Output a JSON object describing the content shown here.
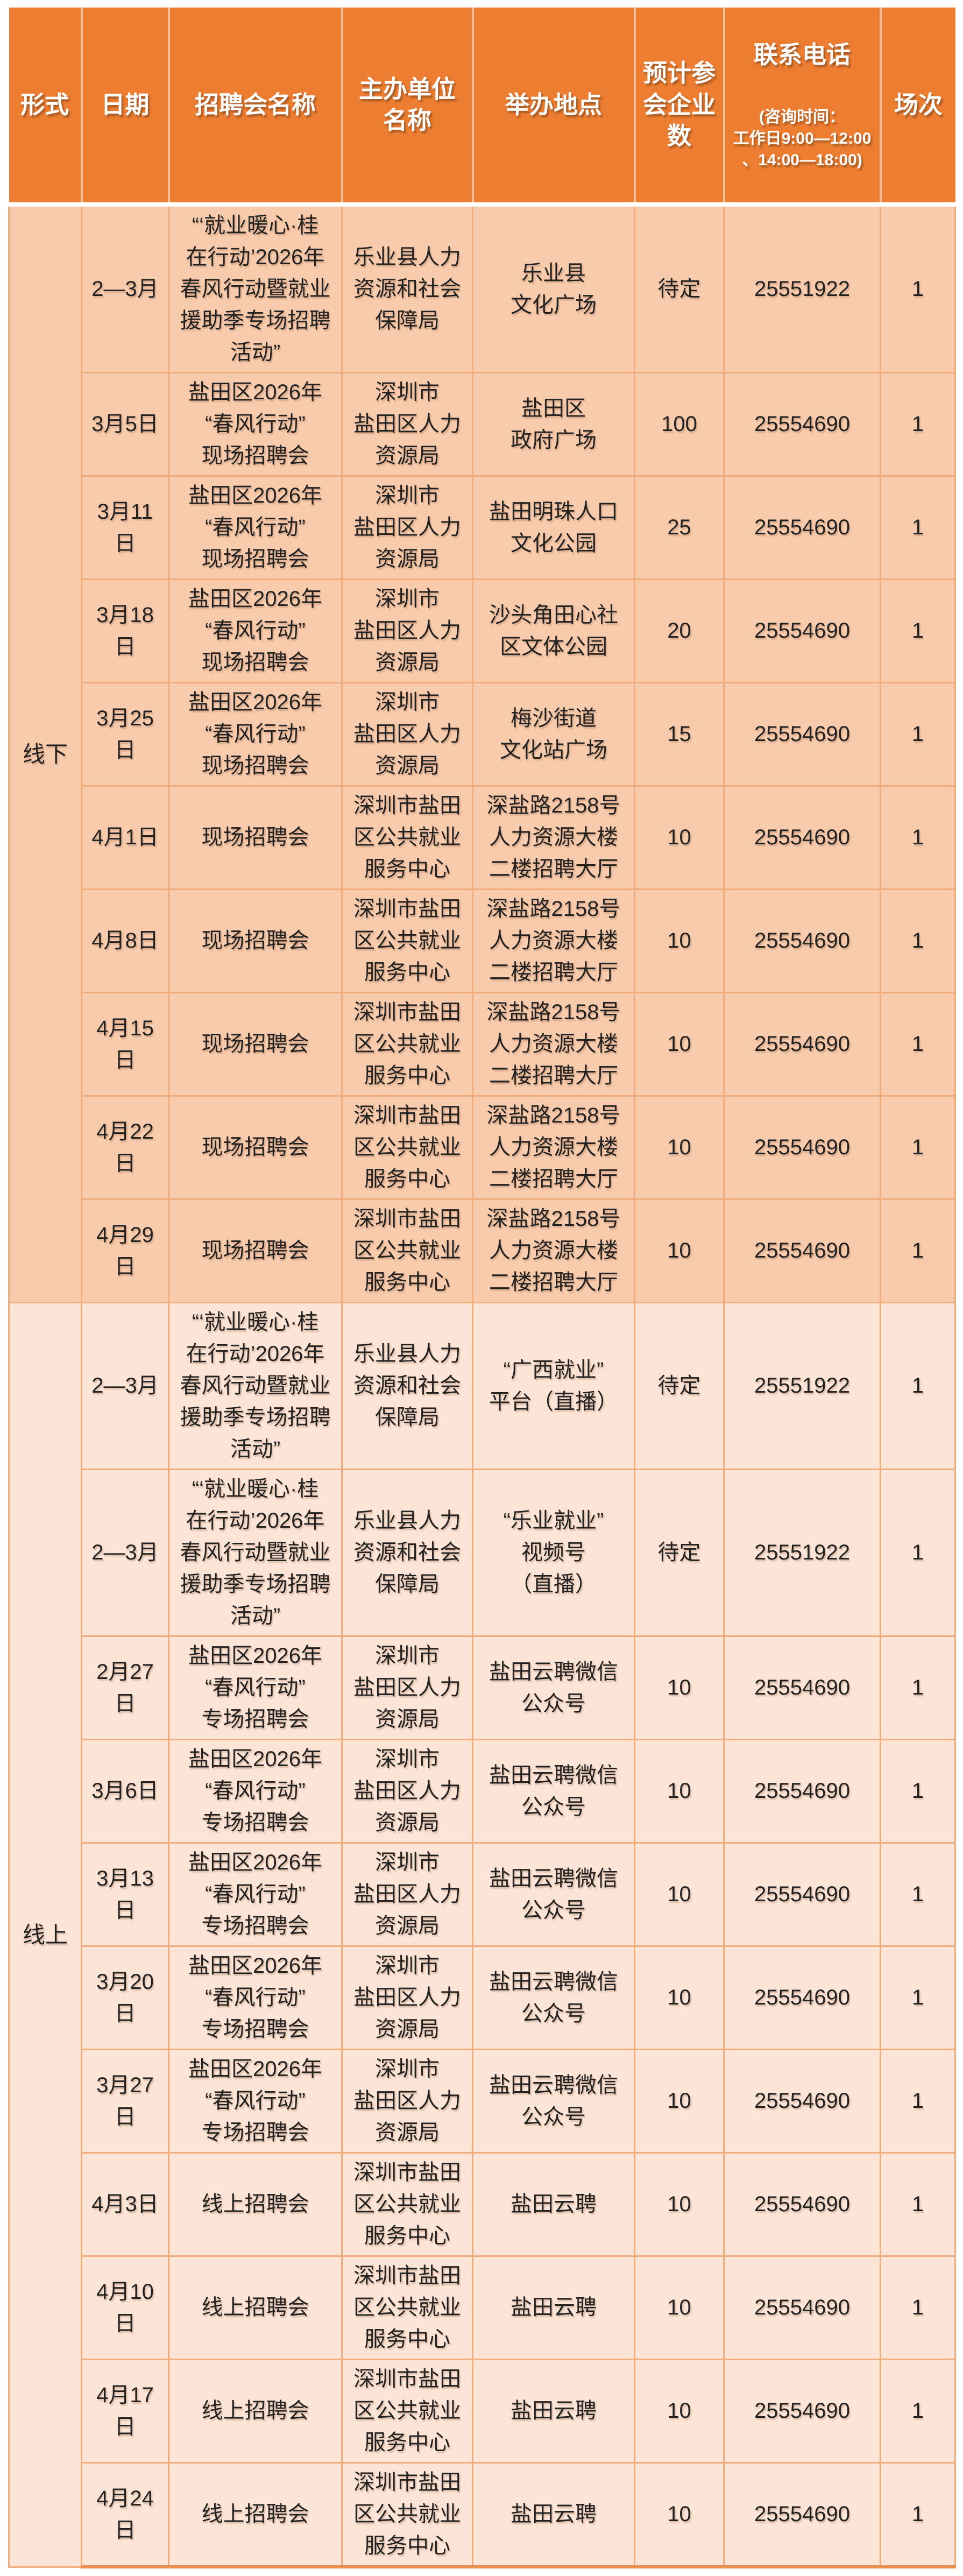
{
  "colors": {
    "header_bg": "#ED7D31",
    "header_text": "#FFFFFF",
    "offline_row_bg": "#F8CBAD",
    "online_row_bg": "#FCE4D6",
    "grid_line": "#F1AC7B",
    "outer_bottom_border": "#EA9150",
    "body_text": "#222222"
  },
  "header": {
    "columns": [
      {
        "label": "形式"
      },
      {
        "label": "日期"
      },
      {
        "label": "招聘会名称"
      },
      {
        "label": "主办单位\n名称"
      },
      {
        "label": "举办地点"
      },
      {
        "label": "预计参\n会企业\n数"
      },
      {
        "label": "联系电话",
        "note": "(咨询时间：\n工作日9:00—12:00\n、14:00—18:00)"
      },
      {
        "label": "场次"
      }
    ]
  },
  "sections": [
    {
      "label": "线下",
      "rows": [
        {
          "date": "2—3月",
          "name": "“‘就业暖心·桂\n在行动’2026年\n春风行动暨就业\n援助季专场招聘\n活动”",
          "organizer": "乐业县人力\n资源和社会\n保障局",
          "venue": "乐业县\n文化广场",
          "companies": "待定",
          "phone": "25551922",
          "sessions": "1"
        },
        {
          "date": "3月5日",
          "name": "盐田区2026年\n“春风行动”\n现场招聘会",
          "organizer": "深圳市\n盐田区人力\n资源局",
          "venue": "盐田区\n政府广场",
          "companies": "100",
          "phone": "25554690",
          "sessions": "1"
        },
        {
          "date": "3月11日",
          "name": "盐田区2026年\n“春风行动”\n现场招聘会",
          "organizer": "深圳市\n盐田区人力\n资源局",
          "venue": "盐田明珠人口\n文化公园",
          "companies": "25",
          "phone": "25554690",
          "sessions": "1"
        },
        {
          "date": "3月18日",
          "name": "盐田区2026年\n“春风行动”\n现场招聘会",
          "organizer": "深圳市\n盐田区人力\n资源局",
          "venue": "沙头角田心社\n区文体公园",
          "companies": "20",
          "phone": "25554690",
          "sessions": "1"
        },
        {
          "date": "3月25日",
          "name": "盐田区2026年\n“春风行动”\n现场招聘会",
          "organizer": "深圳市\n盐田区人力\n资源局",
          "venue": "梅沙街道\n文化站广场",
          "companies": "15",
          "phone": "25554690",
          "sessions": "1"
        },
        {
          "date": "4月1日",
          "name": "现场招聘会",
          "organizer": "深圳市盐田\n区公共就业\n服务中心",
          "venue": "深盐路2158号\n人力资源大楼\n二楼招聘大厅",
          "companies": "10",
          "phone": "25554690",
          "sessions": "1"
        },
        {
          "date": "4月8日",
          "name": "现场招聘会",
          "organizer": "深圳市盐田\n区公共就业\n服务中心",
          "venue": "深盐路2158号\n人力资源大楼\n二楼招聘大厅",
          "companies": "10",
          "phone": "25554690",
          "sessions": "1"
        },
        {
          "date": "4月15日",
          "name": "现场招聘会",
          "organizer": "深圳市盐田\n区公共就业\n服务中心",
          "venue": "深盐路2158号\n人力资源大楼\n二楼招聘大厅",
          "companies": "10",
          "phone": "25554690",
          "sessions": "1"
        },
        {
          "date": "4月22日",
          "name": "现场招聘会",
          "organizer": "深圳市盐田\n区公共就业\n服务中心",
          "venue": "深盐路2158号\n人力资源大楼\n二楼招聘大厅",
          "companies": "10",
          "phone": "25554690",
          "sessions": "1"
        },
        {
          "date": "4月29日",
          "name": "现场招聘会",
          "organizer": "深圳市盐田\n区公共就业\n服务中心",
          "venue": "深盐路2158号\n人力资源大楼\n二楼招聘大厅",
          "companies": "10",
          "phone": "25554690",
          "sessions": "1"
        }
      ]
    },
    {
      "label": "线上",
      "rows": [
        {
          "date": "2—3月",
          "name": "“‘就业暖心·桂\n在行动’2026年\n春风行动暨就业\n援助季专场招聘\n活动”",
          "organizer": "乐业县人力\n资源和社会\n保障局",
          "venue": "“广西就业”\n平台（直播）",
          "companies": "待定",
          "phone": "25551922",
          "sessions": "1"
        },
        {
          "date": "2—3月",
          "name": "“‘就业暖心·桂\n在行动’2026年\n春风行动暨就业\n援助季专场招聘\n活动”",
          "organizer": "乐业县人力\n资源和社会\n保障局",
          "venue": "“乐业就业”\n视频号\n（直播）",
          "companies": "待定",
          "phone": "25551922",
          "sessions": "1"
        },
        {
          "date": "2月27日",
          "name": "盐田区2026年\n“春风行动”\n专场招聘会",
          "organizer": "深圳市\n盐田区人力\n资源局",
          "venue": "盐田云聘微信\n公众号",
          "companies": "10",
          "phone": "25554690",
          "sessions": "1"
        },
        {
          "date": "3月6日",
          "name": "盐田区2026年\n“春风行动”\n专场招聘会",
          "organizer": "深圳市\n盐田区人力\n资源局",
          "venue": "盐田云聘微信\n公众号",
          "companies": "10",
          "phone": "25554690",
          "sessions": "1"
        },
        {
          "date": "3月13日",
          "name": "盐田区2026年\n“春风行动”\n专场招聘会",
          "organizer": "深圳市\n盐田区人力\n资源局",
          "venue": "盐田云聘微信\n公众号",
          "companies": "10",
          "phone": "25554690",
          "sessions": "1"
        },
        {
          "date": "3月20日",
          "name": "盐田区2026年\n“春风行动”\n专场招聘会",
          "organizer": "深圳市\n盐田区人力\n资源局",
          "venue": "盐田云聘微信\n公众号",
          "companies": "10",
          "phone": "25554690",
          "sessions": "1"
        },
        {
          "date": "3月27日",
          "name": "盐田区2026年\n“春风行动”\n专场招聘会",
          "organizer": "深圳市\n盐田区人力\n资源局",
          "venue": "盐田云聘微信\n公众号",
          "companies": "10",
          "phone": "25554690",
          "sessions": "1"
        },
        {
          "date": "4月3日",
          "name": "线上招聘会",
          "organizer": "深圳市盐田\n区公共就业\n服务中心",
          "venue": "盐田云聘",
          "companies": "10",
          "phone": "25554690",
          "sessions": "1"
        },
        {
          "date": "4月10日",
          "name": "线上招聘会",
          "organizer": "深圳市盐田\n区公共就业\n服务中心",
          "venue": "盐田云聘",
          "companies": "10",
          "phone": "25554690",
          "sessions": "1"
        },
        {
          "date": "4月17日",
          "name": "线上招聘会",
          "organizer": "深圳市盐田\n区公共就业\n服务中心",
          "venue": "盐田云聘",
          "companies": "10",
          "phone": "25554690",
          "sessions": "1"
        },
        {
          "date": "4月24日",
          "name": "线上招聘会",
          "organizer": "深圳市盐田\n区公共就业\n服务中心",
          "venue": "盐田云聘",
          "companies": "10",
          "phone": "25554690",
          "sessions": "1"
        }
      ]
    }
  ]
}
